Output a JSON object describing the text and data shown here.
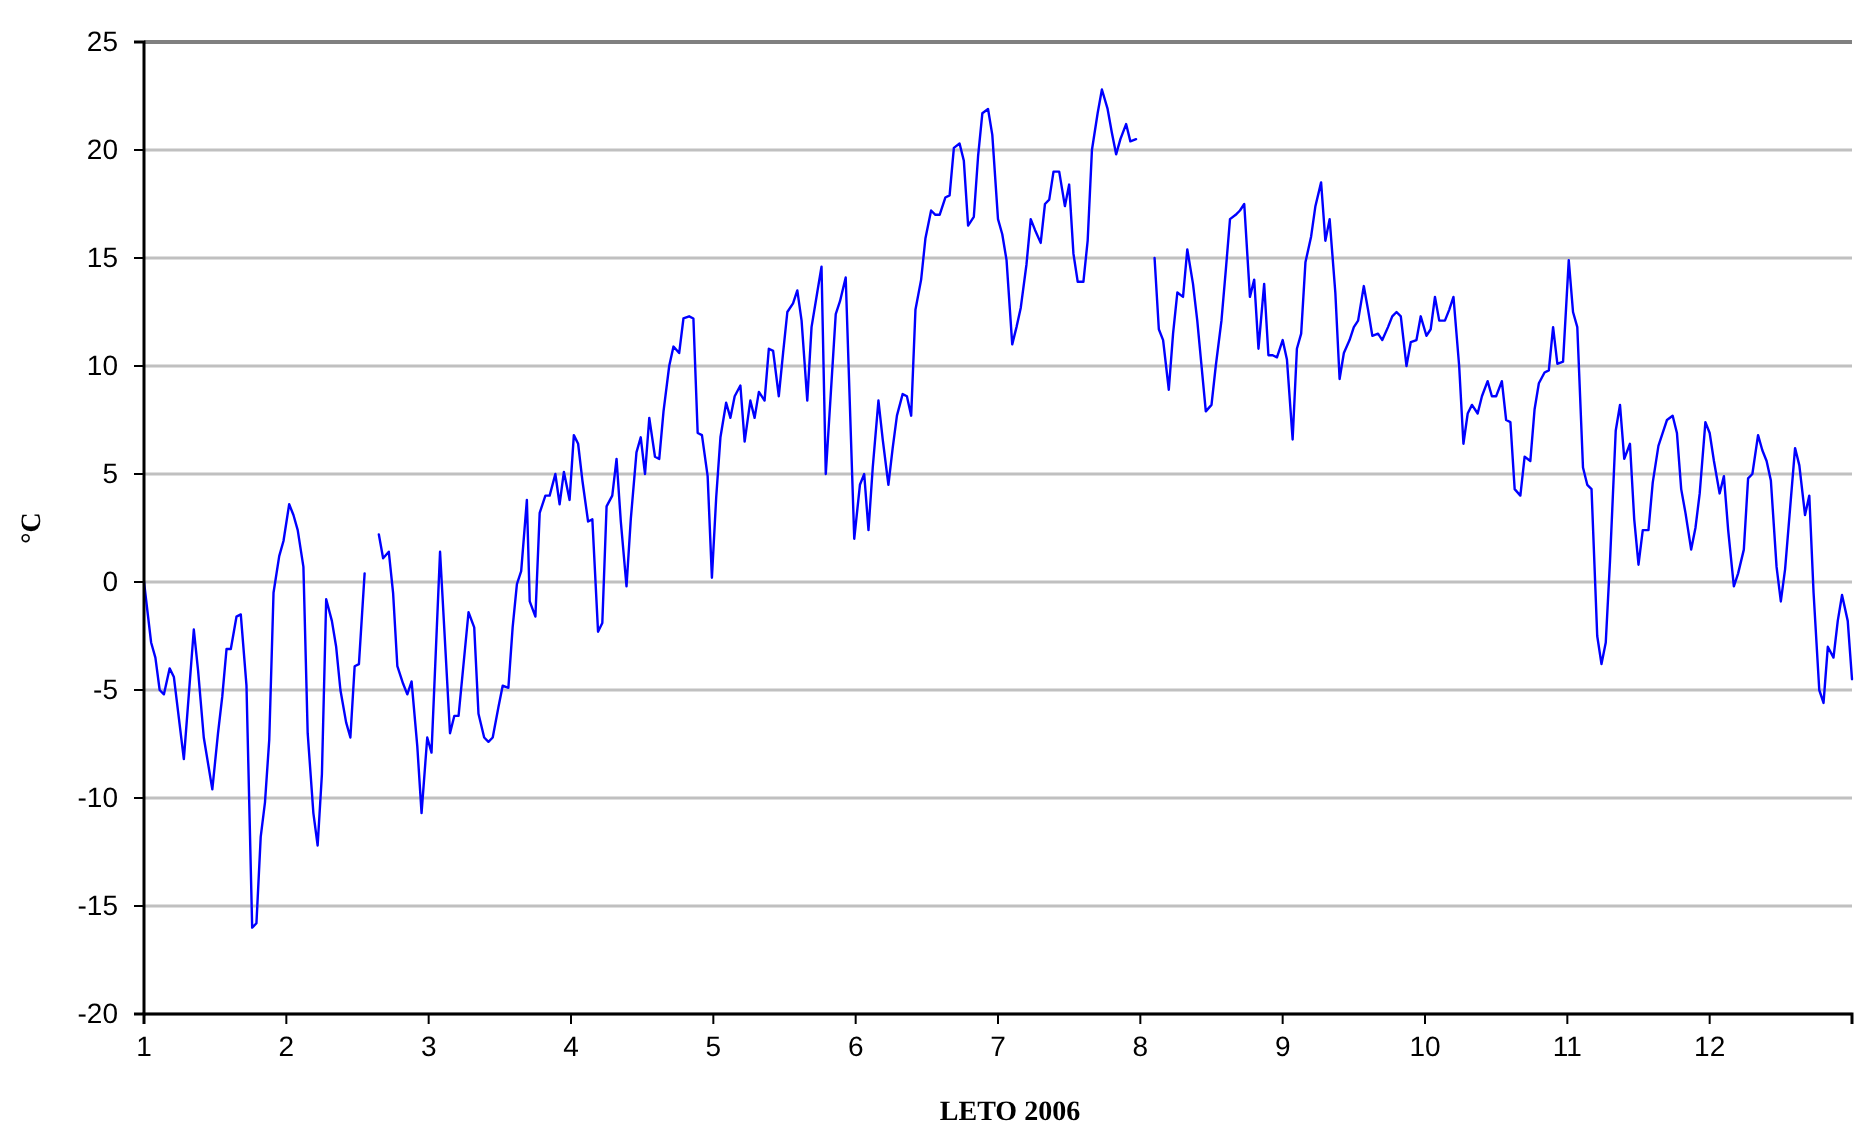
{
  "chart_data": {
    "type": "line",
    "xlabel": "LETO 2006",
    "ylabel": "°C",
    "x": [
      1,
      1.05,
      1.08,
      1.11,
      1.14,
      1.18,
      1.21,
      1.28,
      1.35,
      1.38,
      1.42,
      1.48,
      1.52,
      1.55,
      1.58,
      1.61,
      1.65,
      1.68,
      1.72,
      1.76,
      1.79,
      1.82,
      1.85,
      1.88,
      1.91,
      1.95,
      1.98,
      2.02,
      2.05,
      2.08,
      2.12,
      2.15,
      2.19,
      2.22,
      2.25,
      2.28,
      2.32,
      2.35,
      2.38,
      2.42,
      2.45,
      2.48,
      2.51,
      2.55,
      2.6,
      2.65,
      2.68,
      2.72,
      2.75,
      2.78,
      2.82,
      2.85,
      2.88,
      2.92,
      2.95,
      2.99,
      3.02,
      3.08,
      3.15,
      3.18,
      3.21,
      3.28,
      3.32,
      3.35,
      3.39,
      3.42,
      3.45,
      3.49,
      3.52,
      3.56,
      3.59,
      3.62,
      3.65,
      3.69,
      3.71,
      3.75,
      3.78,
      3.82,
      3.85,
      3.89,
      3.92,
      3.95,
      3.99,
      4.02,
      4.05,
      4.08,
      4.12,
      4.15,
      4.19,
      4.22,
      4.25,
      4.29,
      4.32,
      4.35,
      4.39,
      4.42,
      4.46,
      4.49,
      4.52,
      4.55,
      4.59,
      4.62,
      4.65,
      4.69,
      4.72,
      4.76,
      4.79,
      4.83,
      4.86,
      4.89,
      4.92,
      4.96,
      4.99,
      5.02,
      5.05,
      5.09,
      5.12,
      5.15,
      5.19,
      5.22,
      5.26,
      5.29,
      5.32,
      5.36,
      5.39,
      5.42,
      5.46,
      5.49,
      5.52,
      5.56,
      5.59,
      5.62,
      5.66,
      5.69,
      5.73,
      5.76,
      5.79,
      5.86,
      5.89,
      5.93,
      5.99,
      6.03,
      6.06,
      6.09,
      6.12,
      6.16,
      6.19,
      6.23,
      6.26,
      6.29,
      6.33,
      6.36,
      6.39,
      6.42,
      6.46,
      6.49,
      6.53,
      6.56,
      6.59,
      6.63,
      6.66,
      6.69,
      6.73,
      6.76,
      6.79,
      6.83,
      6.86,
      6.89,
      6.93,
      6.96,
      7,
      7.03,
      7.06,
      7.1,
      7.13,
      7.16,
      7.2,
      7.23,
      7.26,
      7.3,
      7.33,
      7.36,
      7.39,
      7.43,
      7.47,
      7.5,
      7.53,
      7.56,
      7.6,
      7.63,
      7.66,
      7.7,
      7.73,
      7.77,
      7.8,
      7.83,
      7.86,
      7.9,
      7.93,
      7.97,
      8.03,
      8.1,
      8.13,
      8.16,
      8.2,
      8.23,
      8.26,
      8.3,
      8.33,
      8.37,
      8.4,
      8.43,
      8.46,
      8.5,
      8.53,
      8.57,
      8.6,
      8.63,
      8.67,
      8.7,
      8.73,
      8.77,
      8.8,
      8.83,
      8.87,
      8.9,
      8.93,
      8.96,
      9,
      9.03,
      9.07,
      9.1,
      9.13,
      9.16,
      9.2,
      9.23,
      9.27,
      9.3,
      9.33,
      9.37,
      9.4,
      9.43,
      9.47,
      9.5,
      9.53,
      9.57,
      9.6,
      9.63,
      9.67,
      9.7,
      9.74,
      9.77,
      9.8,
      9.83,
      9.87,
      9.9,
      9.94,
      9.97,
      10.01,
      10.04,
      10.07,
      10.1,
      10.14,
      10.17,
      10.2,
      10.24,
      10.27,
      10.3,
      10.33,
      10.37,
      10.4,
      10.44,
      10.47,
      10.5,
      10.54,
      10.57,
      10.6,
      10.63,
      10.67,
      10.7,
      10.74,
      10.77,
      10.8,
      10.84,
      10.87,
      10.9,
      10.93,
      10.97,
      11.01,
      11.04,
      11.07,
      11.11,
      11.14,
      11.17,
      11.21,
      11.24,
      11.27,
      11.3,
      11.34,
      11.37,
      11.4,
      11.44,
      11.47,
      11.5,
      11.53,
      11.57,
      11.6,
      11.64,
      11.67,
      11.7,
      11.74,
      11.77,
      11.8,
      11.83,
      11.87,
      11.9,
      11.93,
      11.97,
      12,
      12.03,
      12.07,
      12.1,
      12.13,
      12.17,
      12.2,
      12.24,
      12.27,
      12.3,
      12.34,
      12.37,
      12.4,
      12.43,
      12.47,
      12.5,
      12.53,
      12.57,
      12.6,
      12.63,
      12.67,
      12.7,
      12.73,
      12.77,
      12.8,
      12.83,
      12.87,
      12.9,
      12.93,
      12.97,
      13
    ],
    "series": [
      {
        "color": "#0000ff",
        "values": [
          0,
          -2.8,
          -3.5,
          -5.0,
          -5.2,
          -4.0,
          -4.4,
          -8.2,
          -2.2,
          -4.1,
          -7.2,
          -9.6,
          -7.0,
          -5.3,
          -3.1,
          -3.1,
          -1.6,
          -1.5,
          -4.8,
          -16.0,
          -15.8,
          -11.8,
          -10.2,
          -7.3,
          -0.5,
          1.2,
          1.9,
          3.6,
          3.1,
          2.4,
          0.7,
          -7.0,
          -10.7,
          -12.2,
          -8.9,
          -0.8,
          -1.8,
          -3.0,
          -5.0,
          -6.5,
          -7.2,
          -3.9,
          -3.8,
          0.4,
          null,
          2.2,
          1.1,
          1.4,
          -0.5,
          -3.9,
          -4.7,
          -5.2,
          -4.6,
          -7.6,
          -10.7,
          -7.2,
          -7.9,
          1.4,
          -7.0,
          -6.2,
          -6.2,
          -1.4,
          -2.1,
          -6.1,
          -7.2,
          -7.4,
          -7.2,
          -5.8,
          -4.8,
          -4.9,
          -2.1,
          -0.1,
          0.5,
          3.8,
          -0.9,
          -1.6,
          3.2,
          4.0,
          4.0,
          5.0,
          3.6,
          5.1,
          3.8,
          6.8,
          6.4,
          4.7,
          2.8,
          2.9,
          -2.3,
          -1.9,
          3.5,
          4.0,
          5.7,
          2.8,
          -0.2,
          2.9,
          6.0,
          6.7,
          5.0,
          7.6,
          5.8,
          5.7,
          7.9,
          10.0,
          10.9,
          10.6,
          12.2,
          12.3,
          12.2,
          6.9,
          6.8,
          4.9,
          0.2,
          3.9,
          6.7,
          8.3,
          7.6,
          8.6,
          9.1,
          6.5,
          8.4,
          7.6,
          8.8,
          8.4,
          10.8,
          10.7,
          8.6,
          10.6,
          12.5,
          12.9,
          13.5,
          12.1,
          8.4,
          11.8,
          13.4,
          14.6,
          5.0,
          12.4,
          13.0,
          14.1,
          2.0,
          4.5,
          5.0,
          2.4,
          5.3,
          8.4,
          6.6,
          4.5,
          6.2,
          7.7,
          8.7,
          8.6,
          7.7,
          12.6,
          14.0,
          15.9,
          17.2,
          17.0,
          17.0,
          17.8,
          17.9,
          20.1,
          20.3,
          19.5,
          16.5,
          16.9,
          19.7,
          21.7,
          21.9,
          20.7,
          16.8,
          16.1,
          14.9,
          11.0,
          11.8,
          12.7,
          14.7,
          16.8,
          16.3,
          15.7,
          17.5,
          17.7,
          19.0,
          19.0,
          17.4,
          18.4,
          15.2,
          13.9,
          13.9,
          15.8,
          20.0,
          21.7,
          22.8,
          21.9,
          20.8,
          19.8,
          20.5,
          21.2,
          20.4,
          20.5,
          null,
          15.0,
          11.7,
          11.2,
          8.9,
          11.5,
          13.4,
          13.2,
          15.4,
          13.8,
          12.1,
          10.0,
          7.9,
          8.2,
          10.0,
          12.1,
          14.4,
          16.8,
          17.0,
          17.2,
          17.5,
          13.2,
          14.0,
          10.8,
          13.8,
          10.5,
          10.5,
          10.4,
          11.2,
          10.3,
          6.6,
          10.8,
          11.5,
          14.8,
          16.0,
          17.4,
          18.5,
          15.8,
          16.8,
          13.4,
          9.4,
          10.6,
          11.2,
          11.8,
          12.1,
          13.7,
          12.6,
          11.4,
          11.5,
          11.2,
          11.8,
          12.3,
          12.5,
          12.3,
          10.0,
          11.1,
          11.2,
          12.3,
          11.4,
          11.7,
          13.2,
          12.1,
          12.1,
          12.6,
          13.2,
          10.0,
          6.4,
          7.8,
          8.2,
          7.8,
          8.6,
          9.3,
          8.6,
          8.6,
          9.3,
          7.5,
          7.4,
          4.3,
          4.0,
          5.8,
          5.6,
          8.0,
          9.2,
          9.7,
          9.8,
          11.8,
          10.1,
          10.2,
          14.9,
          12.5,
          11.8,
          5.3,
          4.5,
          4.3,
          -2.5,
          -3.8,
          -2.8,
          1.0,
          7.0,
          8.2,
          5.7,
          6.4,
          2.9,
          0.8,
          2.4,
          2.4,
          4.6,
          6.3,
          6.9,
          7.5,
          7.7,
          6.9,
          4.3,
          3.2,
          1.5,
          2.5,
          4.1,
          7.4,
          6.9,
          5.6,
          4.1,
          4.9,
          2.4,
          -0.2,
          0.4,
          1.5,
          4.8,
          5.0,
          6.8,
          6.1,
          5.6,
          4.7,
          0.7,
          -0.9,
          0.6,
          3.8,
          6.2,
          5.4,
          3.1,
          4.0,
          -0.5,
          -5.0,
          -5.6,
          -3.0,
          -3.5,
          -1.8,
          -0.6,
          -1.8,
          -4.5
        ]
      }
    ],
    "xlim": [
      1,
      13
    ],
    "xticks": [
      1,
      2,
      3,
      4,
      5,
      6,
      7,
      8,
      9,
      10,
      11,
      12
    ],
    "ylim": [
      -20,
      25
    ],
    "yticks": [
      -20,
      -15,
      -10,
      -5,
      0,
      5,
      10,
      15,
      20,
      25
    ],
    "grid": "y"
  }
}
